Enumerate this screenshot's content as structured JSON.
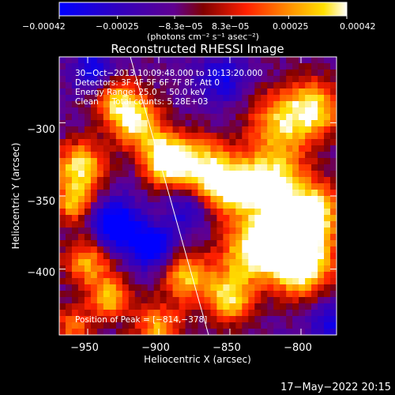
{
  "chart_data": {
    "type": "heatmap",
    "title": "Reconstructed RHESSI Image",
    "xlabel": "Heliocentric X (arcsec)",
    "ylabel": "Heliocentric Y (arcsec)",
    "xlim": [
      -970,
      -775
    ],
    "ylim": [
      -445,
      -255
    ],
    "x_ticks": [
      -950,
      -900,
      -850,
      -800
    ],
    "y_ticks": [
      -300,
      -350,
      -400
    ],
    "x_tick_labels": [
      "−950",
      "−900",
      "−850",
      "−800"
    ],
    "y_tick_labels": [
      "−300",
      "−350",
      "−400"
    ],
    "colorbar": {
      "min": -0.00042,
      "max": 0.00042,
      "ticks": [
        -0.00042,
        -0.00025,
        -8.3e-05,
        8.3e-05,
        0.00025,
        0.00042
      ],
      "tick_labels": [
        "−0.00042",
        "−0.00025",
        "−8.3e−05",
        "8.3e−05",
        "0.00025",
        "0.00042"
      ],
      "unit_label": "(photons cm⁻² s⁻¹ asec⁻²)",
      "colors": [
        "#0000ff",
        "#2a00c8",
        "#5a0096",
        "#9a0000",
        "#ff2a00",
        "#ff8c00",
        "#ffe000",
        "#ffffff"
      ]
    },
    "info_lines": [
      "30−Oct−2013 10:09:48.000 to 10:13:20.000",
      "Detectors: 3F 4F 5F 6F 7F 8F, Att 0",
      "Energy Range: 25.0 − 50.0 keV",
      "Clean     Total counts: 5.28E+03"
    ],
    "peak_label": "Position of Peak = [−814,−378]",
    "peak": [
      -814,
      -378
    ],
    "hot_regions": [
      {
        "x": -814,
        "y": -378,
        "amp": 1.0,
        "sigma": 14
      },
      {
        "x": -800,
        "y": -395,
        "amp": 0.75,
        "sigma": 16
      },
      {
        "x": -790,
        "y": -360,
        "amp": 0.55,
        "sigma": 14
      },
      {
        "x": -820,
        "y": -340,
        "amp": 0.6,
        "sigma": 16
      },
      {
        "x": -815,
        "y": -300,
        "amp": 0.45,
        "sigma": 16
      },
      {
        "x": -790,
        "y": -290,
        "amp": 0.5,
        "sigma": 14
      },
      {
        "x": -840,
        "y": -390,
        "amp": 0.45,
        "sigma": 14
      },
      {
        "x": -850,
        "y": -345,
        "amp": 0.55,
        "sigma": 14
      },
      {
        "x": -870,
        "y": -330,
        "amp": 0.5,
        "sigma": 14
      },
      {
        "x": -895,
        "y": -325,
        "amp": 0.7,
        "sigma": 12
      },
      {
        "x": -915,
        "y": -300,
        "amp": 0.55,
        "sigma": 12
      },
      {
        "x": -930,
        "y": -285,
        "amp": 0.45,
        "sigma": 12
      },
      {
        "x": -955,
        "y": -330,
        "amp": 0.6,
        "sigma": 12
      },
      {
        "x": -960,
        "y": -355,
        "amp": 0.45,
        "sigma": 10
      },
      {
        "x": -950,
        "y": -395,
        "amp": 0.45,
        "sigma": 12
      },
      {
        "x": -935,
        "y": -420,
        "amp": 0.5,
        "sigma": 10
      },
      {
        "x": -880,
        "y": -405,
        "amp": 0.5,
        "sigma": 12
      },
      {
        "x": -850,
        "y": -420,
        "amp": 0.55,
        "sigma": 12
      },
      {
        "x": -900,
        "y": -440,
        "amp": 0.45,
        "sigma": 12
      },
      {
        "x": -960,
        "y": -440,
        "amp": 0.35,
        "sigma": 10
      }
    ],
    "cold_regions": [
      {
        "x": -930,
        "y": -370,
        "amp": 0.55,
        "sigma": 12
      },
      {
        "x": -905,
        "y": -385,
        "amp": 0.5,
        "sigma": 10
      },
      {
        "x": -945,
        "y": -265,
        "amp": 0.35,
        "sigma": 10
      },
      {
        "x": -855,
        "y": -270,
        "amp": 0.3,
        "sigma": 12
      },
      {
        "x": -780,
        "y": -435,
        "amp": 0.3,
        "sigma": 10
      },
      {
        "x": -880,
        "y": -360,
        "amp": 0.3,
        "sigma": 10
      }
    ]
  },
  "footer_timestamp": "17−May−2022 20:15"
}
